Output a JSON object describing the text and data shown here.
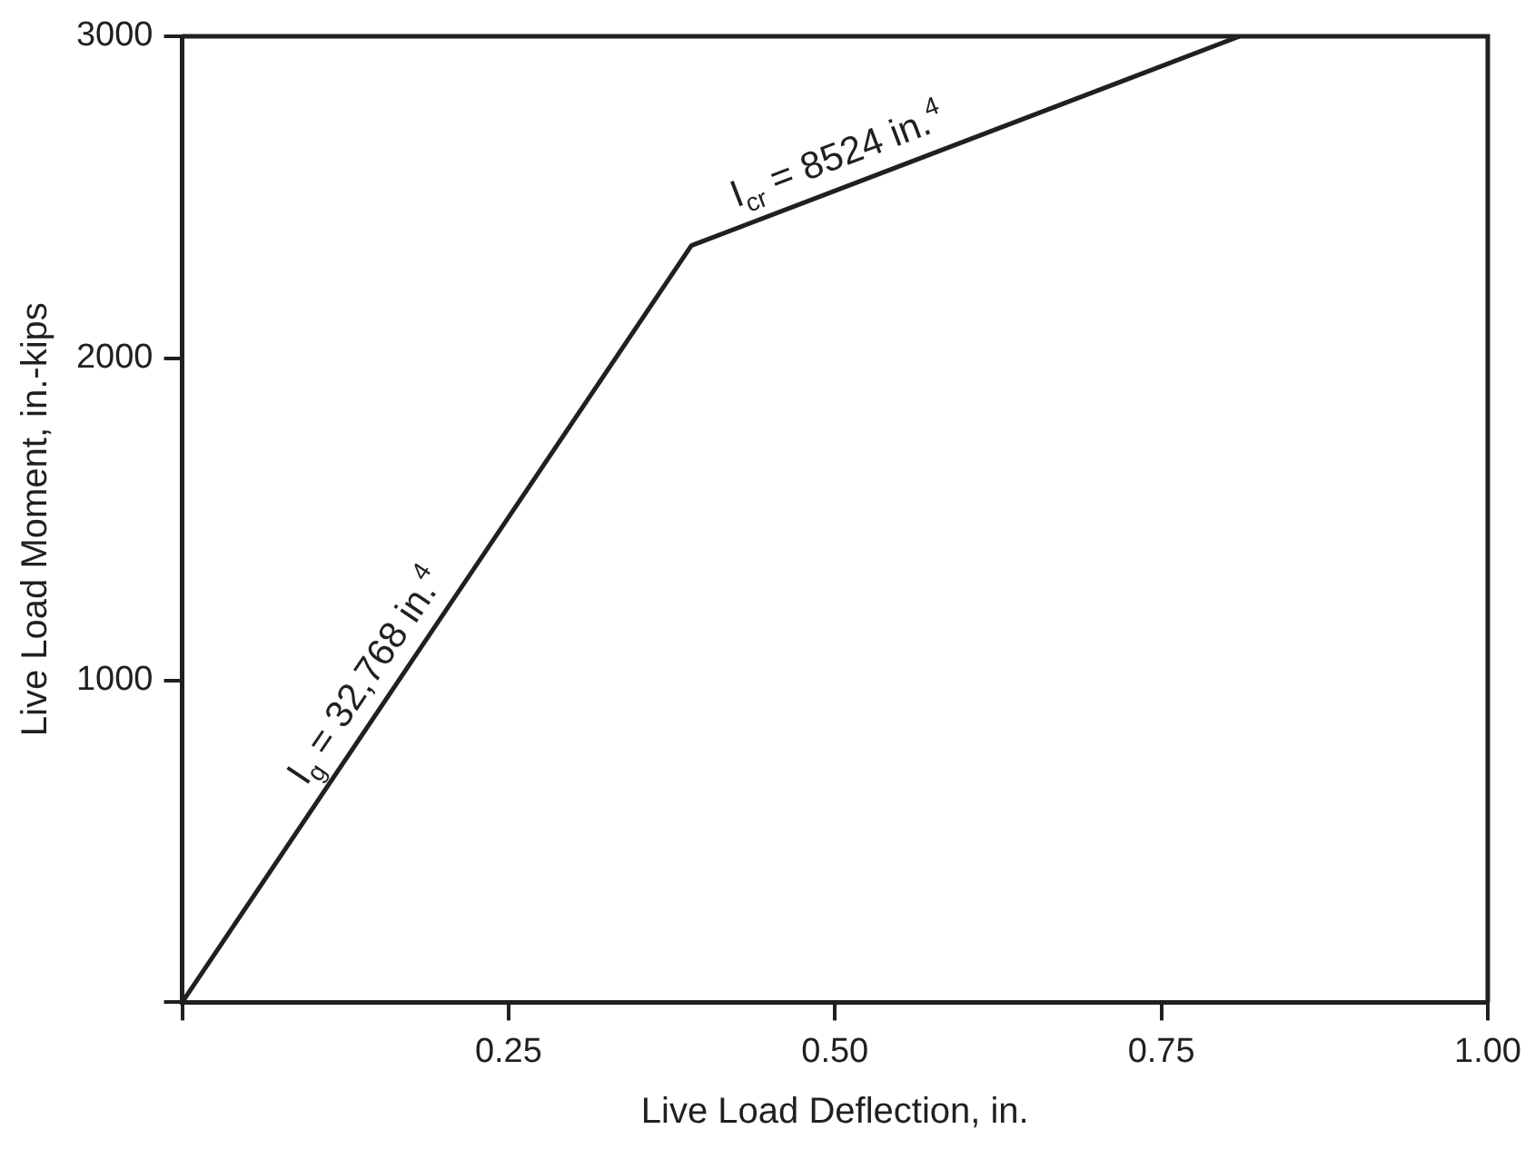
{
  "chart_data": {
    "type": "line",
    "xlabel": "Live Load Deflection, in.",
    "ylabel": "Live Load Moment, in.-kips",
    "x": [
      0,
      0.39,
      0.81
    ],
    "series": [
      {
        "color": "#231f20",
        "values": [
          0,
          2350,
          3000
        ]
      }
    ],
    "xlim": [
      0,
      1
    ],
    "xticks": [
      {
        "value": 0,
        "label": null
      },
      {
        "value": 0.25,
        "label": "0.25"
      },
      {
        "value": 0.5,
        "label": "0.50"
      },
      {
        "value": 0.75,
        "label": "0.75"
      },
      {
        "value": 1,
        "label": "1.00"
      }
    ],
    "ylim": [
      0,
      3000
    ],
    "yticks": [
      {
        "value": 0,
        "label": null
      },
      1000,
      2000,
      3000
    ],
    "annotations": [
      {
        "text": "I$_{g}$ = 32,768 in.$^{4}$",
        "x": 0.16,
        "y": 960
      },
      {
        "text": "I$_{cr}$ = 8524 in.$^{4}$",
        "x": 0.51,
        "y": 2540
      }
    ],
    "grid": false,
    "legend": false,
    "marker": "none",
    "line_style": "solid"
  }
}
